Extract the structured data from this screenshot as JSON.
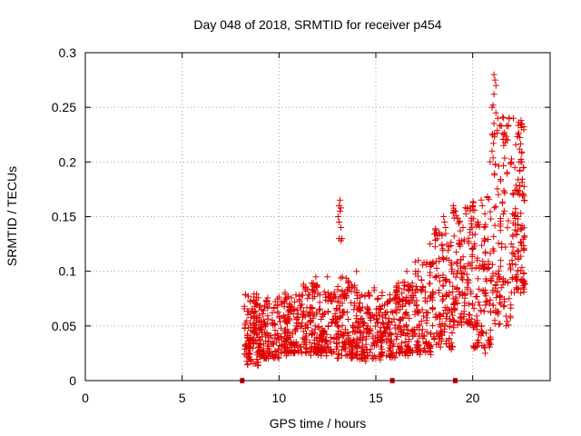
{
  "chart_data": {
    "type": "scatter",
    "title": "Day 048 of 2018, SRMTID for receiver p454",
    "xlabel": "GPS time / hours",
    "ylabel": "SRMTID / TECUs",
    "xlim": [
      0,
      24
    ],
    "ylim": [
      0,
      0.3
    ],
    "xticks": [
      0,
      5,
      10,
      15,
      20
    ],
    "xtick_labels": [
      "0",
      "5",
      "10",
      "15",
      "20"
    ],
    "yticks": [
      0,
      0.05,
      0.1,
      0.15,
      0.2,
      0.25,
      0.3
    ],
    "ytick_labels": [
      "0",
      "0.05",
      "0.1",
      "0.15",
      "0.2",
      "0.25",
      "0.3"
    ],
    "grid": true,
    "marker": "+",
    "color": "#e00000",
    "baseline_markers_x": [
      8.1,
      15.85,
      19.1
    ],
    "series": [
      {
        "name": "SRMTID",
        "bands": [
          {
            "x": [
              8.2,
              9.0
            ],
            "y": [
              0.015,
              0.08
            ]
          },
          {
            "x": [
              9.0,
              10.0
            ],
            "y": [
              0.02,
              0.075
            ]
          },
          {
            "x": [
              10.0,
              11.0
            ],
            "y": [
              0.025,
              0.08
            ]
          },
          {
            "x": [
              11.0,
              12.0
            ],
            "y": [
              0.025,
              0.09
            ]
          },
          {
            "x": [
              12.0,
              13.0
            ],
            "y": [
              0.025,
              0.085
            ]
          },
          {
            "x": [
              13.0,
              14.0
            ],
            "y": [
              0.02,
              0.095
            ]
          },
          {
            "x": [
              14.0,
              15.0
            ],
            "y": [
              0.02,
              0.085
            ]
          },
          {
            "x": [
              15.0,
              16.0
            ],
            "y": [
              0.02,
              0.08
            ]
          },
          {
            "x": [
              16.0,
              17.0
            ],
            "y": [
              0.025,
              0.09
            ]
          },
          {
            "x": [
              17.0,
              18.0
            ],
            "y": [
              0.025,
              0.11
            ]
          },
          {
            "x": [
              18.0,
              19.0
            ],
            "y": [
              0.03,
              0.14
            ]
          },
          {
            "x": [
              19.0,
              20.0
            ],
            "y": [
              0.05,
              0.16
            ]
          },
          {
            "x": [
              20.0,
              21.0
            ],
            "y": [
              0.03,
              0.17
            ]
          },
          {
            "x": [
              21.0,
              22.0
            ],
            "y": [
              0.05,
              0.25
            ]
          },
          {
            "x": [
              22.0,
              22.7
            ],
            "y": [
              0.08,
              0.24
            ]
          }
        ],
        "points": [
          [
            13.1,
            0.16
          ],
          [
            13.15,
            0.155
          ],
          [
            13.2,
            0.158
          ],
          [
            13.05,
            0.15
          ],
          [
            13.1,
            0.145
          ],
          [
            13.2,
            0.14
          ],
          [
            13.1,
            0.13
          ],
          [
            13.2,
            0.128
          ],
          [
            13.25,
            0.13
          ],
          [
            13.15,
            0.165
          ],
          [
            21.1,
            0.28
          ],
          [
            21.15,
            0.275
          ],
          [
            21.2,
            0.27
          ],
          [
            21.1,
            0.262
          ],
          [
            21.0,
            0.25
          ],
          [
            21.05,
            0.252
          ],
          [
            21.2,
            0.245
          ],
          [
            21.3,
            0.24
          ],
          [
            22.1,
            0.24
          ],
          [
            22.5,
            0.238
          ],
          [
            22.55,
            0.235
          ],
          [
            19.0,
            0.16
          ],
          [
            19.1,
            0.155
          ],
          [
            18.5,
            0.15
          ],
          [
            18.55,
            0.145
          ],
          [
            18.6,
            0.14
          ],
          [
            19.5,
            0.14
          ],
          [
            20.5,
            0.16
          ],
          [
            20.0,
            0.16
          ],
          [
            20.9,
            0.2
          ],
          [
            21.0,
            0.21
          ],
          [
            21.6,
            0.215
          ],
          [
            21.8,
            0.22
          ],
          [
            22.0,
            0.2
          ],
          [
            22.4,
            0.2
          ],
          [
            19.3,
            0.125
          ],
          [
            17.8,
            0.125
          ],
          [
            20.6,
            0.03
          ],
          [
            20.65,
            0.025
          ],
          [
            19.8,
            0.07
          ],
          [
            19.85,
            0.06
          ],
          [
            15.7,
            0.03
          ],
          [
            16.2,
            0.025
          ],
          [
            14.0,
            0.1
          ],
          [
            12.5,
            0.095
          ],
          [
            11.9,
            0.095
          ],
          [
            13.6,
            0.09
          ],
          [
            16.6,
            0.1
          ],
          [
            17.2,
            0.11
          ],
          [
            22.6,
            0.085
          ]
        ]
      }
    ]
  }
}
